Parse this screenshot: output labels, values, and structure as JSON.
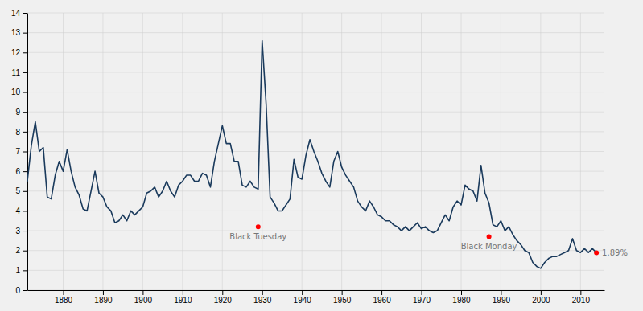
{
  "chart_data": {
    "type": "line",
    "color": "#1a3a5c",
    "grid": true,
    "xlim": [
      1871,
      2016
    ],
    "ylim": [
      0,
      14
    ],
    "xticks": [
      1880,
      1890,
      1900,
      1910,
      1920,
      1930,
      1940,
      1950,
      1960,
      1970,
      1980,
      1990,
      2000,
      2010
    ],
    "yticks": [
      0,
      1,
      2,
      3,
      4,
      5,
      6,
      7,
      8,
      9,
      10,
      11,
      12,
      13,
      14
    ],
    "annotations": [
      {
        "x": 1929,
        "y": 3.2,
        "label": "Black Tuesday"
      },
      {
        "x": 1987,
        "y": 2.7,
        "label": "Black Monday"
      },
      {
        "x": 2014,
        "y": 1.89,
        "label": "1.89%"
      }
    ],
    "x": [
      1871,
      1872,
      1873,
      1874,
      1875,
      1876,
      1877,
      1878,
      1879,
      1880,
      1881,
      1882,
      1883,
      1884,
      1885,
      1886,
      1887,
      1888,
      1889,
      1890,
      1891,
      1892,
      1893,
      1894,
      1895,
      1896,
      1897,
      1898,
      1899,
      1900,
      1901,
      1902,
      1903,
      1904,
      1905,
      1906,
      1907,
      1908,
      1909,
      1910,
      1911,
      1912,
      1913,
      1914,
      1915,
      1916,
      1917,
      1918,
      1919,
      1920,
      1921,
      1922,
      1923,
      1924,
      1925,
      1926,
      1927,
      1928,
      1929,
      1930,
      1931,
      1932,
      1933,
      1934,
      1935,
      1936,
      1937,
      1938,
      1939,
      1940,
      1941,
      1942,
      1943,
      1944,
      1945,
      1946,
      1947,
      1948,
      1949,
      1950,
      1951,
      1952,
      1953,
      1954,
      1955,
      1956,
      1957,
      1958,
      1959,
      1960,
      1961,
      1962,
      1963,
      1964,
      1965,
      1966,
      1967,
      1968,
      1969,
      1970,
      1971,
      1972,
      1973,
      1974,
      1975,
      1976,
      1977,
      1978,
      1979,
      1980,
      1981,
      1982,
      1983,
      1984,
      1985,
      1986,
      1987,
      1988,
      1989,
      1990,
      1991,
      1992,
      1993,
      1994,
      1995,
      1996,
      1997,
      1998,
      1999,
      2000,
      2001,
      2002,
      2003,
      2004,
      2005,
      2006,
      2007,
      2008,
      2009,
      2010,
      2011,
      2012,
      2013,
      2014
    ],
    "values": [
      5.5,
      7.3,
      8.5,
      7.0,
      7.2,
      4.7,
      4.6,
      5.8,
      6.5,
      6.0,
      7.1,
      6.0,
      5.2,
      4.8,
      4.1,
      4.0,
      5.0,
      6.0,
      4.9,
      4.7,
      4.2,
      4.0,
      3.4,
      3.5,
      3.8,
      3.5,
      4.0,
      3.8,
      4.0,
      4.2,
      4.9,
      5.0,
      5.2,
      4.7,
      5.0,
      5.5,
      5.0,
      4.7,
      5.3,
      5.5,
      5.8,
      5.8,
      5.5,
      5.5,
      5.9,
      5.8,
      5.2,
      6.5,
      7.4,
      8.3,
      7.4,
      7.4,
      6.5,
      6.5,
      5.3,
      5.2,
      5.5,
      5.2,
      5.1,
      12.6,
      9.4,
      4.7,
      4.4,
      4.0,
      4.0,
      4.3,
      4.6,
      6.6,
      5.7,
      5.6,
      6.8,
      7.6,
      7.0,
      6.5,
      5.9,
      5.5,
      5.2,
      6.5,
      7.0,
      6.2,
      5.8,
      5.5,
      5.2,
      4.5,
      4.2,
      4.0,
      4.5,
      4.2,
      3.8,
      3.7,
      3.5,
      3.5,
      3.3,
      3.2,
      3.0,
      3.2,
      3.0,
      3.2,
      3.4,
      3.1,
      3.2,
      3.0,
      2.9,
      3.0,
      3.4,
      3.8,
      3.5,
      4.2,
      4.5,
      4.3,
      5.3,
      5.1,
      5.0,
      4.5,
      6.3,
      4.9,
      4.4,
      3.3,
      3.2,
      3.5,
      3.0,
      3.2,
      2.8,
      2.5,
      2.3,
      2.0,
      1.9,
      1.4,
      1.2,
      1.1,
      1.4,
      1.6,
      1.7,
      1.7,
      1.8,
      1.9,
      2.0,
      2.6,
      2.0,
      1.9,
      2.1,
      1.9,
      2.1,
      1.89
    ]
  }
}
